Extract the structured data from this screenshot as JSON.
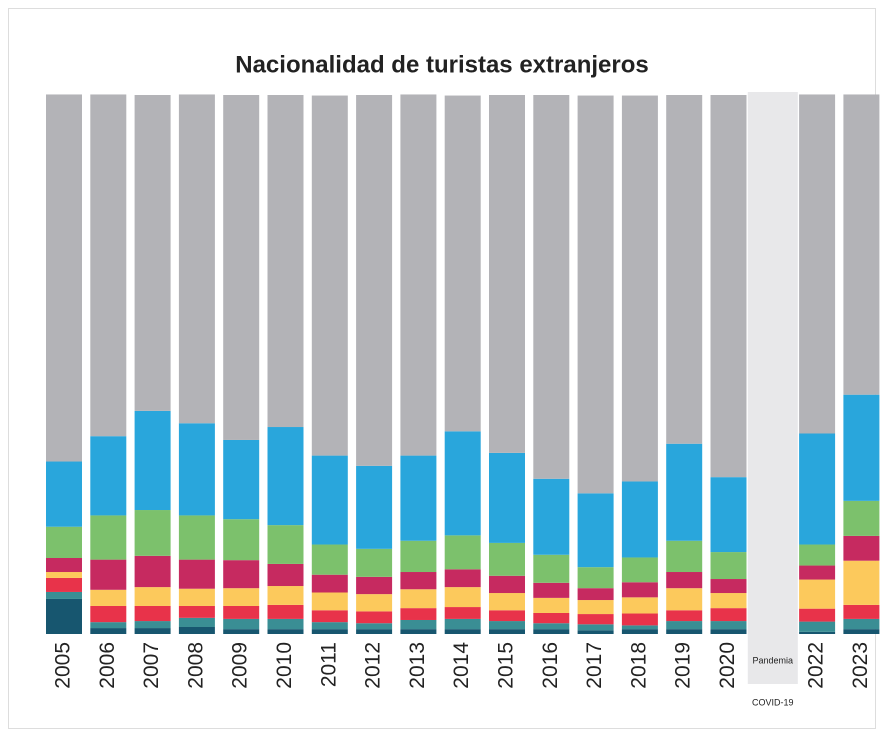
{
  "chart_data": {
    "type": "bar",
    "stacked": true,
    "title": "Nacionalidad de turistas extranjeros",
    "categories": [
      "2005",
      "2006",
      "2007",
      "2008",
      "2009",
      "2010",
      "2011",
      "2012",
      "2013",
      "2014",
      "2015",
      "2016",
      "2017",
      "2018",
      "2019",
      "2020",
      null,
      "2022",
      "2023"
    ],
    "annotation": [
      "Pandemia",
      "COVID-19"
    ],
    "ylim": [
      0,
      100
    ],
    "series": [
      {
        "color": "#17566f",
        "values": [
          6.5,
          1.1,
          1.1,
          1.3,
          0.9,
          0.9,
          0.9,
          0.9,
          0.9,
          0.9,
          0.9,
          0.9,
          0.7,
          0.9,
          0.9,
          0.9,
          null,
          0.4,
          0.9
        ]
      },
      {
        "color": "#3a8e94",
        "values": [
          1.3,
          1.1,
          1.3,
          1.7,
          1.9,
          1.9,
          1.3,
          1.1,
          1.7,
          1.9,
          1.5,
          1.1,
          1.1,
          0.7,
          1.5,
          1.5,
          null,
          1.9,
          1.9
        ]
      },
      {
        "color": "#e8334a",
        "values": [
          2.6,
          3.0,
          2.8,
          2.2,
          2.4,
          2.6,
          2.2,
          2.2,
          2.2,
          2.2,
          2.0,
          1.9,
          1.9,
          2.2,
          2.0,
          2.4,
          null,
          2.4,
          2.6
        ]
      },
      {
        "color": "#fcc95c",
        "values": [
          1.1,
          3.0,
          3.5,
          3.2,
          3.3,
          3.5,
          3.3,
          3.2,
          3.5,
          3.7,
          3.2,
          2.8,
          2.6,
          3.0,
          4.1,
          2.8,
          null,
          5.4,
          8.2
        ]
      },
      {
        "color": "#c62a60",
        "values": [
          2.6,
          5.6,
          5.8,
          5.4,
          5.2,
          4.1,
          3.3,
          3.2,
          3.2,
          3.3,
          3.2,
          2.8,
          2.2,
          2.8,
          3.0,
          2.6,
          null,
          2.6,
          4.6
        ]
      },
      {
        "color": "#7cc16c",
        "values": [
          5.8,
          8.2,
          8.5,
          8.2,
          7.6,
          7.2,
          5.6,
          5.2,
          5.8,
          6.3,
          6.1,
          5.2,
          3.9,
          4.6,
          5.8,
          5.0,
          null,
          3.9,
          6.5
        ]
      },
      {
        "color": "#29a6dc",
        "values": [
          12.1,
          14.7,
          18.4,
          17.1,
          14.7,
          18.2,
          16.5,
          15.4,
          15.8,
          19.3,
          16.7,
          14.1,
          13.7,
          14.1,
          18.0,
          13.9,
          null,
          20.6,
          19.7
        ]
      },
      {
        "color": "#b3b3b7",
        "values": [
          68.1,
          63.4,
          58.6,
          61.0,
          64.0,
          61.6,
          66.8,
          68.8,
          67.0,
          62.3,
          66.4,
          71.2,
          73.8,
          71.6,
          64.7,
          70.9,
          null,
          62.9,
          55.7
        ]
      }
    ]
  }
}
